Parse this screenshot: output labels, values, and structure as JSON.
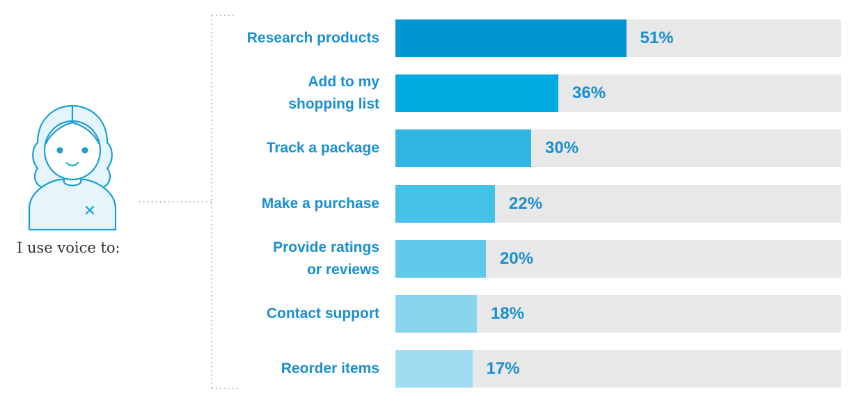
{
  "caption": "I use voice to:",
  "colors": {
    "label": "#1a8fd0",
    "value": "#1a8fd0",
    "track": "#e8e8e8",
    "avatar_stroke": "#1a9fd6",
    "avatar_fill": "#e6f5fc"
  },
  "chart_data": {
    "type": "bar",
    "orientation": "horizontal",
    "categories": [
      "Research products",
      "Add to my\nshopping list",
      "Track a package",
      "Make a purchase",
      "Provide ratings\nor reviews",
      "Contact support",
      "Reorder items"
    ],
    "values": [
      51,
      36,
      30,
      22,
      20,
      18,
      17
    ],
    "value_labels": [
      "51%",
      "36%",
      "30%",
      "22%",
      "20%",
      "18%",
      "17%"
    ],
    "bar_colors": [
      "#0096d3",
      "#00a9df",
      "#2fb6e2",
      "#44c1e8",
      "#61c8ea",
      "#89d5f0",
      "#a0dcf2"
    ],
    "xlim": [
      0,
      100
    ],
    "grid": false,
    "legend": "none"
  }
}
